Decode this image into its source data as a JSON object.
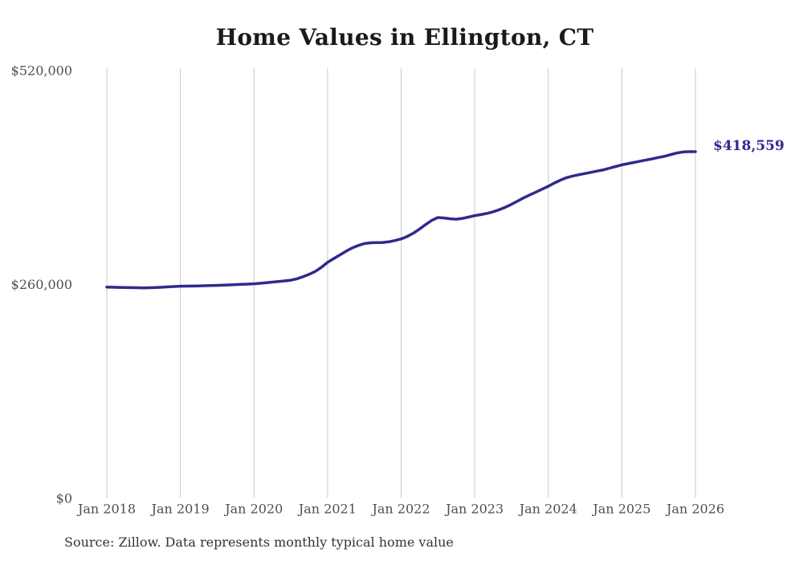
{
  "title": "Home Values in Ellington, CT",
  "source_note": "Source: Zillow. Data represents monthly typical home value",
  "colors": {
    "background": "#ffffff",
    "line": "#2e2a8d",
    "grid": "#c9c9c9",
    "title_text": "#1a1a1a",
    "axis_text": "#4f4f4f",
    "source_text": "#333333",
    "end_label_text": "#2e2a8d"
  },
  "chart_data": {
    "type": "line",
    "title": "Home Values in Ellington, CT",
    "xlabel": "",
    "ylabel": "",
    "x_unit": "month",
    "x_start": "2018-01",
    "x_end": "2026-01",
    "x_tick_labels": [
      "Jan 2018",
      "Jan 2019",
      "Jan 2020",
      "Jan 2021",
      "Jan 2022",
      "Jan 2023",
      "Jan 2024",
      "Jan 2025",
      "Jan 2026"
    ],
    "y_ticks": [
      {
        "value": 0,
        "label": "$0"
      },
      {
        "value": 260000,
        "label": "$260,000"
      },
      {
        "value": 520000,
        "label": "$520,000"
      }
    ],
    "ylim": [
      0,
      520000
    ],
    "grid": "vertical-only",
    "legend": "none",
    "end_value": 418559,
    "end_value_label": "$418,559",
    "series": [
      {
        "name": "Typical home value",
        "values": [
          254000,
          253800,
          253600,
          253400,
          253300,
          253200,
          253000,
          253200,
          253500,
          253800,
          254200,
          254600,
          255000,
          255100,
          255200,
          255400,
          255600,
          255800,
          256000,
          256300,
          256600,
          257000,
          257300,
          257600,
          258000,
          258500,
          259200,
          260000,
          260800,
          261500,
          262300,
          264000,
          266500,
          269500,
          273000,
          278000,
          284000,
          288500,
          293000,
          297500,
          301500,
          304500,
          306800,
          307800,
          308000,
          308200,
          309000,
          310500,
          312500,
          315500,
          319500,
          324500,
          330000,
          335000,
          338500,
          338000,
          337000,
          336500,
          337500,
          339000,
          340800,
          342000,
          343500,
          345500,
          348000,
          351000,
          354500,
          358500,
          362500,
          366000,
          369500,
          373000,
          376500,
          380500,
          384000,
          387000,
          389000,
          390500,
          392000,
          393500,
          395000,
          396500,
          398500,
          400500,
          402500,
          404000,
          405500,
          407000,
          408500,
          410000,
          411500,
          413000,
          415000,
          417000,
          418200,
          418500,
          418559
        ]
      }
    ]
  }
}
